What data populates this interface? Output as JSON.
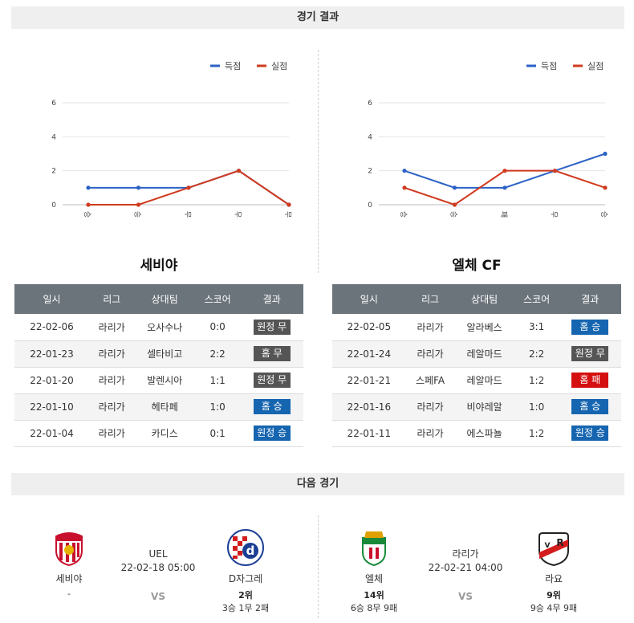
{
  "header": {
    "results_title": "경기 결과",
    "next_title": "다음 경기"
  },
  "legend": {
    "scored": "득점",
    "conceded": "실점"
  },
  "colors": {
    "scored": "#2c62c6",
    "conceded": "#d03a1f",
    "badge_gray": "#555555",
    "badge_blue": "#1565b0",
    "badge_red": "#d51010",
    "table_header": "#6c747b"
  },
  "chart_data": [
    {
      "type": "line",
      "categories": [
        "승",
        "승",
        "무",
        "무",
        "무"
      ],
      "series": [
        {
          "name": "득점",
          "values": [
            1,
            1,
            1,
            2,
            0
          ]
        },
        {
          "name": "실점",
          "values": [
            0,
            0,
            1,
            2,
            0
          ]
        }
      ],
      "ylim": [
        0,
        6
      ],
      "yticks": [
        0,
        2,
        4,
        6
      ],
      "legend": "top-right",
      "grid": true
    },
    {
      "type": "line",
      "categories": [
        "승",
        "승",
        "패",
        "무",
        "승"
      ],
      "series": [
        {
          "name": "득점",
          "values": [
            2,
            1,
            1,
            2,
            3
          ]
        },
        {
          "name": "실점",
          "values": [
            1,
            0,
            2,
            2,
            1
          ]
        }
      ],
      "ylim": [
        0,
        6
      ],
      "yticks": [
        0,
        2,
        4,
        6
      ],
      "legend": "top-right",
      "grid": true
    }
  ],
  "tables": {
    "headers": [
      "일시",
      "리그",
      "상대팀",
      "스코어",
      "결과"
    ],
    "left": {
      "team": "세비야",
      "rows": [
        {
          "date": "22-02-06",
          "league": "라리가",
          "opponent": "오사수나",
          "score": "0:0",
          "result": "원정 무",
          "color": "gray"
        },
        {
          "date": "22-01-23",
          "league": "라리가",
          "opponent": "셀타비고",
          "score": "2:2",
          "result": "홈 무",
          "color": "gray"
        },
        {
          "date": "22-01-20",
          "league": "라리가",
          "opponent": "발렌시아",
          "score": "1:1",
          "result": "원정 무",
          "color": "gray"
        },
        {
          "date": "22-01-10",
          "league": "라리가",
          "opponent": "헤타페",
          "score": "1:0",
          "result": "홈 승",
          "color": "blue"
        },
        {
          "date": "22-01-04",
          "league": "라리가",
          "opponent": "카디스",
          "score": "0:1",
          "result": "원정 승",
          "color": "blue"
        }
      ]
    },
    "right": {
      "team": "엘체 CF",
      "rows": [
        {
          "date": "22-02-05",
          "league": "라리가",
          "opponent": "알라베스",
          "score": "3:1",
          "result": "홈 승",
          "color": "blue"
        },
        {
          "date": "22-01-24",
          "league": "라리가",
          "opponent": "레알마드",
          "score": "2:2",
          "result": "원정 무",
          "color": "gray"
        },
        {
          "date": "22-01-21",
          "league": "스페FA",
          "opponent": "레알마드",
          "score": "1:2",
          "result": "홈 패",
          "color": "red"
        },
        {
          "date": "22-01-16",
          "league": "라리가",
          "opponent": "비야레알",
          "score": "1:0",
          "result": "홈 승",
          "color": "blue"
        },
        {
          "date": "22-01-11",
          "league": "라리가",
          "opponent": "에스파뇰",
          "score": "1:2",
          "result": "원정 승",
          "color": "blue"
        }
      ]
    }
  },
  "next": {
    "left": {
      "home": {
        "name": "세비야",
        "rank": "",
        "record": "-"
      },
      "league": "UEL",
      "datetime": "22-02-18 05:00",
      "vs": "VS",
      "away": {
        "name": "D자그레",
        "rank": "2위",
        "record": "3승 1무 2패"
      }
    },
    "right": {
      "home": {
        "name": "엘체",
        "rank": "14위",
        "record": "6승 8무 9패"
      },
      "league": "라리가",
      "datetime": "22-02-21 04:00",
      "vs": "VS",
      "away": {
        "name": "라요",
        "rank": "9위",
        "record": "9승 4무 9패"
      }
    }
  }
}
